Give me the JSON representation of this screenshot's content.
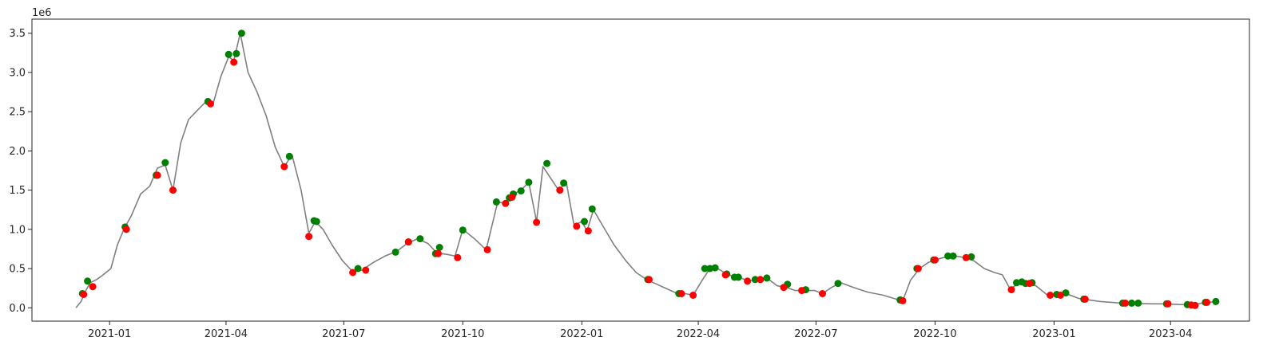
{
  "chart_data": {
    "type": "line",
    "title": "",
    "xlabel": "",
    "ylabel": "",
    "y_offset_label": "1e6",
    "y_scale": 1000000,
    "xlim": [
      "2020-11-02",
      "2023-06-01"
    ],
    "ylim": [
      -0.17,
      3.68
    ],
    "grid": false,
    "legend": "none",
    "colors": {
      "line": "#808080",
      "up_marker": "#008000",
      "down_marker": "#ff0000",
      "axes": "#262626"
    },
    "x_ticks": [
      {
        "date": "2021-01-01",
        "label": "2021-01"
      },
      {
        "date": "2021-04-01",
        "label": "2021-04"
      },
      {
        "date": "2021-07-01",
        "label": "2021-07"
      },
      {
        "date": "2021-10-01",
        "label": "2021-10"
      },
      {
        "date": "2022-01-01",
        "label": "2022-01"
      },
      {
        "date": "2022-04-01",
        "label": "2022-04"
      },
      {
        "date": "2022-07-01",
        "label": "2022-07"
      },
      {
        "date": "2022-10-01",
        "label": "2022-10"
      },
      {
        "date": "2023-01-01",
        "label": "2023-01"
      },
      {
        "date": "2023-04-01",
        "label": "2023-04"
      }
    ],
    "y_ticks": [
      {
        "value": 0.0,
        "label": "0.0"
      },
      {
        "value": 0.5,
        "label": "0.5"
      },
      {
        "value": 1.0,
        "label": "1.0"
      },
      {
        "value": 1.5,
        "label": "1.5"
      },
      {
        "value": 2.0,
        "label": "2.0"
      },
      {
        "value": 2.5,
        "label": "2.5"
      },
      {
        "value": 3.0,
        "label": "3.0"
      },
      {
        "value": 3.5,
        "label": "3.5"
      }
    ],
    "line": [
      [
        "2020-12-06",
        0.0
      ],
      [
        "2020-12-10",
        0.08
      ],
      [
        "2020-12-13",
        0.2
      ],
      [
        "2020-12-17",
        0.32
      ],
      [
        "2020-12-22",
        0.36
      ],
      [
        "2020-12-27",
        0.42
      ],
      [
        "2021-01-02",
        0.5
      ],
      [
        "2021-01-07",
        0.8
      ],
      [
        "2021-01-12",
        1.0
      ],
      [
        "2021-01-18",
        1.18
      ],
      [
        "2021-01-25",
        1.45
      ],
      [
        "2021-02-01",
        1.55
      ],
      [
        "2021-02-07",
        1.78
      ],
      [
        "2021-02-13",
        1.82
      ],
      [
        "2021-02-19",
        1.5
      ],
      [
        "2021-02-25",
        2.1
      ],
      [
        "2021-03-03",
        2.4
      ],
      [
        "2021-03-10",
        2.52
      ],
      [
        "2021-03-16",
        2.62
      ],
      [
        "2021-03-22",
        2.6
      ],
      [
        "2021-03-28",
        2.95
      ],
      [
        "2021-04-03",
        3.2
      ],
      [
        "2021-04-07",
        3.15
      ],
      [
        "2021-04-12",
        3.5
      ],
      [
        "2021-04-18",
        3.0
      ],
      [
        "2021-04-25",
        2.75
      ],
      [
        "2021-05-02",
        2.45
      ],
      [
        "2021-05-09",
        2.05
      ],
      [
        "2021-05-16",
        1.8
      ],
      [
        "2021-05-22",
        1.95
      ],
      [
        "2021-05-29",
        1.5
      ],
      [
        "2021-06-04",
        0.95
      ],
      [
        "2021-06-09",
        1.1
      ],
      [
        "2021-06-15",
        1.0
      ],
      [
        "2021-06-22",
        0.8
      ],
      [
        "2021-06-30",
        0.6
      ],
      [
        "2021-07-08",
        0.46
      ],
      [
        "2021-07-15",
        0.48
      ],
      [
        "2021-07-24",
        0.58
      ],
      [
        "2021-08-02",
        0.66
      ],
      [
        "2021-08-11",
        0.72
      ],
      [
        "2021-08-19",
        0.82
      ],
      [
        "2021-08-27",
        0.88
      ],
      [
        "2021-09-04",
        0.82
      ],
      [
        "2021-09-11",
        0.7
      ],
      [
        "2021-09-19",
        0.68
      ],
      [
        "2021-09-25",
        0.66
      ],
      [
        "2021-10-01",
        1.0
      ],
      [
        "2021-10-10",
        0.88
      ],
      [
        "2021-10-19",
        0.74
      ],
      [
        "2021-10-28",
        1.35
      ],
      [
        "2021-11-03",
        1.33
      ],
      [
        "2021-11-09",
        1.45
      ],
      [
        "2021-11-15",
        1.5
      ],
      [
        "2021-11-21",
        1.6
      ],
      [
        "2021-11-27",
        1.1
      ],
      [
        "2021-12-02",
        1.8
      ],
      [
        "2021-12-08",
        1.65
      ],
      [
        "2021-12-14",
        1.5
      ],
      [
        "2021-12-20",
        1.6
      ],
      [
        "2021-12-26",
        1.05
      ],
      [
        "2022-01-01",
        1.1
      ],
      [
        "2022-01-05",
        0.98
      ],
      [
        "2022-01-10",
        1.25
      ],
      [
        "2022-01-17",
        1.05
      ],
      [
        "2022-01-26",
        0.8
      ],
      [
        "2022-02-04",
        0.6
      ],
      [
        "2022-02-12",
        0.45
      ],
      [
        "2022-02-20",
        0.36
      ],
      [
        "2022-02-28",
        0.3
      ],
      [
        "2022-03-08",
        0.24
      ],
      [
        "2022-03-16",
        0.18
      ],
      [
        "2022-03-22",
        0.18
      ],
      [
        "2022-03-28",
        0.16
      ],
      [
        "2022-04-04",
        0.35
      ],
      [
        "2022-04-10",
        0.5
      ],
      [
        "2022-04-16",
        0.5
      ],
      [
        "2022-04-22",
        0.44
      ],
      [
        "2022-04-28",
        0.4
      ],
      [
        "2022-05-04",
        0.38
      ],
      [
        "2022-05-10",
        0.34
      ],
      [
        "2022-05-16",
        0.36
      ],
      [
        "2022-05-24",
        0.38
      ],
      [
        "2022-06-01",
        0.28
      ],
      [
        "2022-06-08",
        0.26
      ],
      [
        "2022-06-15",
        0.22
      ],
      [
        "2022-06-22",
        0.22
      ],
      [
        "2022-06-30",
        0.22
      ],
      [
        "2022-07-06",
        0.18
      ],
      [
        "2022-07-13",
        0.26
      ],
      [
        "2022-07-20",
        0.32
      ],
      [
        "2022-07-30",
        0.26
      ],
      [
        "2022-08-10",
        0.2
      ],
      [
        "2022-08-22",
        0.16
      ],
      [
        "2022-09-03",
        0.1
      ],
      [
        "2022-09-06",
        0.09
      ],
      [
        "2022-09-12",
        0.35
      ],
      [
        "2022-09-19",
        0.5
      ],
      [
        "2022-09-26",
        0.58
      ],
      [
        "2022-10-03",
        0.62
      ],
      [
        "2022-10-10",
        0.65
      ],
      [
        "2022-10-17",
        0.66
      ],
      [
        "2022-10-24",
        0.64
      ],
      [
        "2022-10-31",
        0.6
      ],
      [
        "2022-11-08",
        0.5
      ],
      [
        "2022-11-16",
        0.45
      ],
      [
        "2022-11-22",
        0.42
      ],
      [
        "2022-11-28",
        0.24
      ],
      [
        "2022-12-04",
        0.3
      ],
      [
        "2022-12-10",
        0.32
      ],
      [
        "2022-12-18",
        0.28
      ],
      [
        "2022-12-27",
        0.16
      ],
      [
        "2023-01-04",
        0.16
      ],
      [
        "2023-01-12",
        0.17
      ],
      [
        "2023-01-20",
        0.12
      ],
      [
        "2023-01-28",
        0.1
      ],
      [
        "2023-02-06",
        0.08
      ],
      [
        "2023-02-14",
        0.07
      ],
      [
        "2023-02-22",
        0.06
      ],
      [
        "2023-03-02",
        0.06
      ],
      [
        "2023-03-10",
        0.055
      ],
      [
        "2023-03-18",
        0.05
      ],
      [
        "2023-03-26",
        0.05
      ],
      [
        "2023-04-03",
        0.045
      ],
      [
        "2023-04-11",
        0.04
      ],
      [
        "2023-04-19",
        0.035
      ],
      [
        "2023-04-25",
        0.06
      ],
      [
        "2023-05-01",
        0.07
      ],
      [
        "2023-05-05",
        0.08
      ]
    ],
    "up_points": [
      [
        "2020-12-11",
        0.18
      ],
      [
        "2020-12-15",
        0.34
      ],
      [
        "2021-01-13",
        1.03
      ],
      [
        "2021-02-06",
        1.69
      ],
      [
        "2021-02-13",
        1.85
      ],
      [
        "2021-03-18",
        2.63
      ],
      [
        "2021-04-03",
        3.23
      ],
      [
        "2021-04-09",
        3.24
      ],
      [
        "2021-04-13",
        3.5
      ],
      [
        "2021-05-20",
        1.93
      ],
      [
        "2021-06-08",
        1.11
      ],
      [
        "2021-06-10",
        1.1
      ],
      [
        "2021-07-12",
        0.5
      ],
      [
        "2021-08-10",
        0.71
      ],
      [
        "2021-08-20",
        0.84
      ],
      [
        "2021-08-29",
        0.88
      ],
      [
        "2021-09-10",
        0.69
      ],
      [
        "2021-09-13",
        0.77
      ],
      [
        "2021-10-01",
        0.99
      ],
      [
        "2021-10-27",
        1.35
      ],
      [
        "2021-11-06",
        1.4
      ],
      [
        "2021-11-09",
        1.45
      ],
      [
        "2021-11-15",
        1.49
      ],
      [
        "2021-11-21",
        1.6
      ],
      [
        "2021-12-05",
        1.84
      ],
      [
        "2021-12-18",
        1.59
      ],
      [
        "2022-01-03",
        1.1
      ],
      [
        "2022-01-09",
        1.26
      ],
      [
        "2022-02-21",
        0.36
      ],
      [
        "2022-03-17",
        0.18
      ],
      [
        "2022-04-06",
        0.5
      ],
      [
        "2022-04-10",
        0.5
      ],
      [
        "2022-04-14",
        0.51
      ],
      [
        "2022-04-23",
        0.43
      ],
      [
        "2022-04-29",
        0.39
      ],
      [
        "2022-05-02",
        0.39
      ],
      [
        "2022-05-15",
        0.36
      ],
      [
        "2022-05-24",
        0.38
      ],
      [
        "2022-06-09",
        0.3
      ],
      [
        "2022-06-23",
        0.23
      ],
      [
        "2022-07-18",
        0.31
      ],
      [
        "2022-09-04",
        0.1
      ],
      [
        "2022-09-17",
        0.5
      ],
      [
        "2022-09-30",
        0.61
      ],
      [
        "2022-10-11",
        0.66
      ],
      [
        "2022-10-15",
        0.66
      ],
      [
        "2022-10-29",
        0.65
      ],
      [
        "2022-12-03",
        0.32
      ],
      [
        "2022-12-07",
        0.33
      ],
      [
        "2022-12-10",
        0.31
      ],
      [
        "2022-12-15",
        0.32
      ],
      [
        "2023-01-03",
        0.17
      ],
      [
        "2023-01-10",
        0.19
      ],
      [
        "2023-01-24",
        0.11
      ],
      [
        "2023-02-23",
        0.06
      ],
      [
        "2023-03-02",
        0.06
      ],
      [
        "2023-03-07",
        0.06
      ],
      [
        "2023-03-29",
        0.05
      ],
      [
        "2023-04-14",
        0.04
      ],
      [
        "2023-04-28",
        0.07
      ],
      [
        "2023-05-06",
        0.08
      ]
    ],
    "down_points": [
      [
        "2020-12-12",
        0.17
      ],
      [
        "2020-12-19",
        0.27
      ],
      [
        "2021-01-14",
        1.0
      ],
      [
        "2021-02-07",
        1.69
      ],
      [
        "2021-02-19",
        1.5
      ],
      [
        "2021-03-20",
        2.6
      ],
      [
        "2021-04-07",
        3.13
      ],
      [
        "2021-05-16",
        1.8
      ],
      [
        "2021-06-04",
        0.91
      ],
      [
        "2021-07-08",
        0.45
      ],
      [
        "2021-07-18",
        0.48
      ],
      [
        "2021-08-20",
        0.84
      ],
      [
        "2021-09-12",
        0.69
      ],
      [
        "2021-09-27",
        0.64
      ],
      [
        "2021-10-20",
        0.74
      ],
      [
        "2021-11-03",
        1.33
      ],
      [
        "2021-11-08",
        1.41
      ],
      [
        "2021-11-27",
        1.09
      ],
      [
        "2021-12-15",
        1.5
      ],
      [
        "2021-12-28",
        1.04
      ],
      [
        "2022-01-06",
        0.98
      ],
      [
        "2022-02-22",
        0.36
      ],
      [
        "2022-03-19",
        0.18
      ],
      [
        "2022-03-28",
        0.16
      ],
      [
        "2022-04-22",
        0.42
      ],
      [
        "2022-05-09",
        0.34
      ],
      [
        "2022-05-19",
        0.36
      ],
      [
        "2022-06-06",
        0.26
      ],
      [
        "2022-06-20",
        0.22
      ],
      [
        "2022-07-06",
        0.18
      ],
      [
        "2022-09-06",
        0.09
      ],
      [
        "2022-09-18",
        0.5
      ],
      [
        "2022-10-01",
        0.61
      ],
      [
        "2022-10-25",
        0.64
      ],
      [
        "2022-11-29",
        0.23
      ],
      [
        "2022-12-13",
        0.31
      ],
      [
        "2022-12-29",
        0.16
      ],
      [
        "2023-01-06",
        0.16
      ],
      [
        "2023-01-25",
        0.11
      ],
      [
        "2023-02-25",
        0.06
      ],
      [
        "2023-03-30",
        0.05
      ],
      [
        "2023-04-17",
        0.035
      ],
      [
        "2023-04-20",
        0.03
      ],
      [
        "2023-04-29",
        0.07
      ]
    ]
  }
}
